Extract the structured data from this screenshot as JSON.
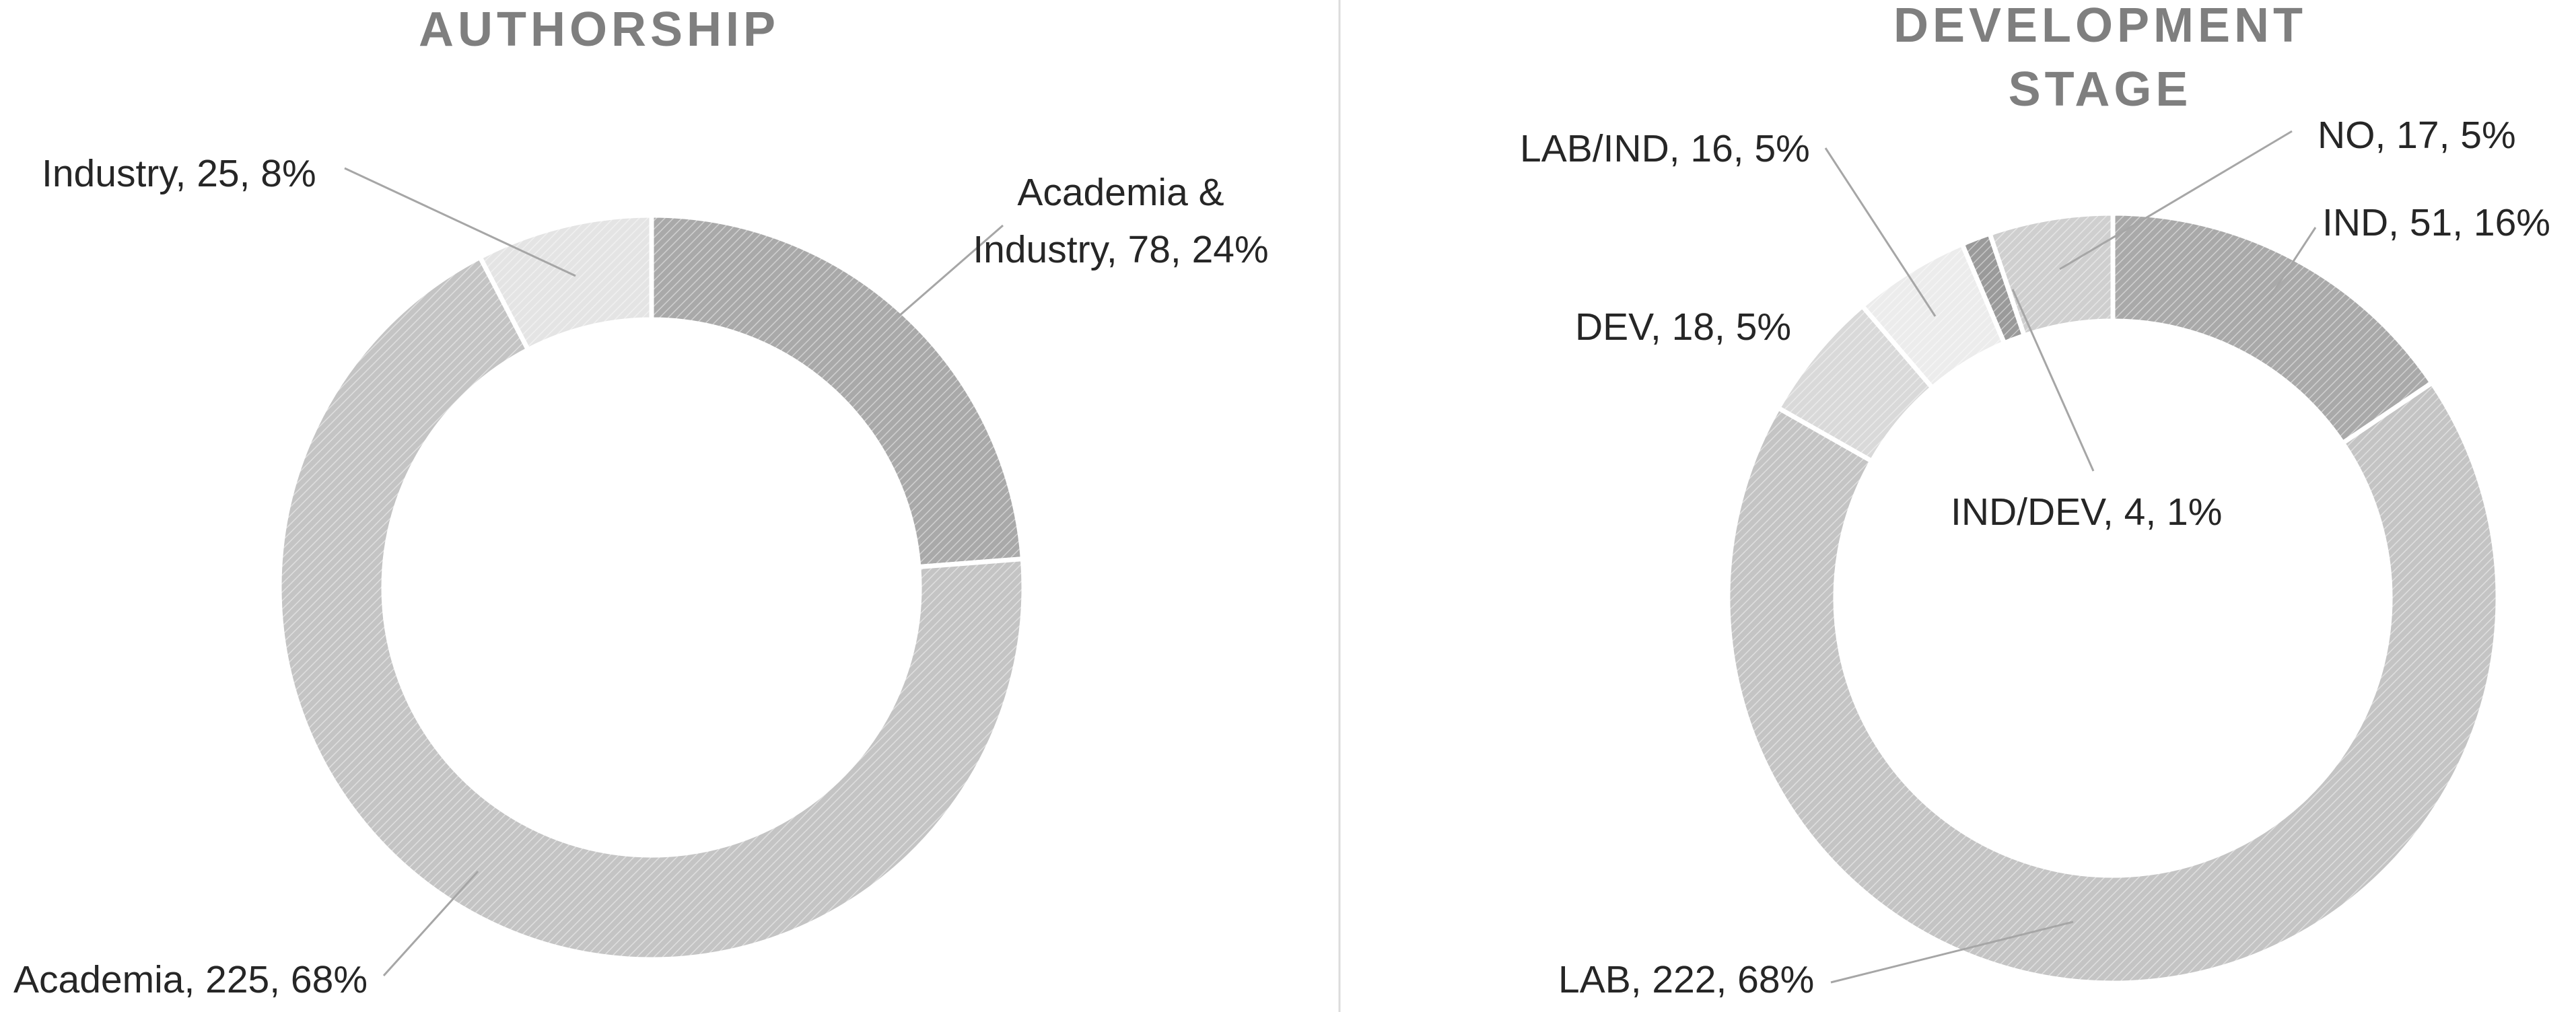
{
  "chart_data": [
    {
      "type": "pie",
      "variant": "donut",
      "title": "AUTHORSHIP",
      "title_lines": [
        "AUTHORSHIP"
      ],
      "categories": [
        "Academia & Industry",
        "Academia",
        "Industry"
      ],
      "values": [
        78,
        225,
        25
      ],
      "percents": [
        24,
        68,
        8
      ],
      "labels": [
        [
          "Academia &",
          "Industry, 78, 24%"
        ],
        [
          "Academia, 225, 68%"
        ],
        [
          "Industry, 25, 8%"
        ]
      ],
      "fills": [
        "#a9a9a9",
        "#c4c4c4",
        "#e4e4e4"
      ],
      "legend": "none"
    },
    {
      "type": "pie",
      "variant": "donut",
      "title": "DEVELOPMENT STAGE",
      "title_lines": [
        "DEVELOPMENT",
        "STAGE"
      ],
      "categories": [
        "IND",
        "LAB",
        "DEV",
        "LAB/IND",
        "IND/DEV",
        "NO"
      ],
      "values": [
        51,
        222,
        18,
        16,
        4,
        17
      ],
      "percents": [
        16,
        68,
        5,
        5,
        1,
        5
      ],
      "labels": [
        [
          "IND, 51, 16%"
        ],
        [
          "LAB, 222, 68%"
        ],
        [
          "DEV, 18, 5%"
        ],
        [
          "LAB/IND, 16, 5%"
        ],
        [
          "IND/DEV, 4, 1%"
        ],
        [
          "NO, 17, 5%"
        ]
      ],
      "fills": [
        "#a9a9a9",
        "#c4c4c4",
        "#d9d9d9",
        "#ececec",
        "#9a9a9a",
        "#cfcfcf"
      ],
      "legend": "none"
    }
  ]
}
